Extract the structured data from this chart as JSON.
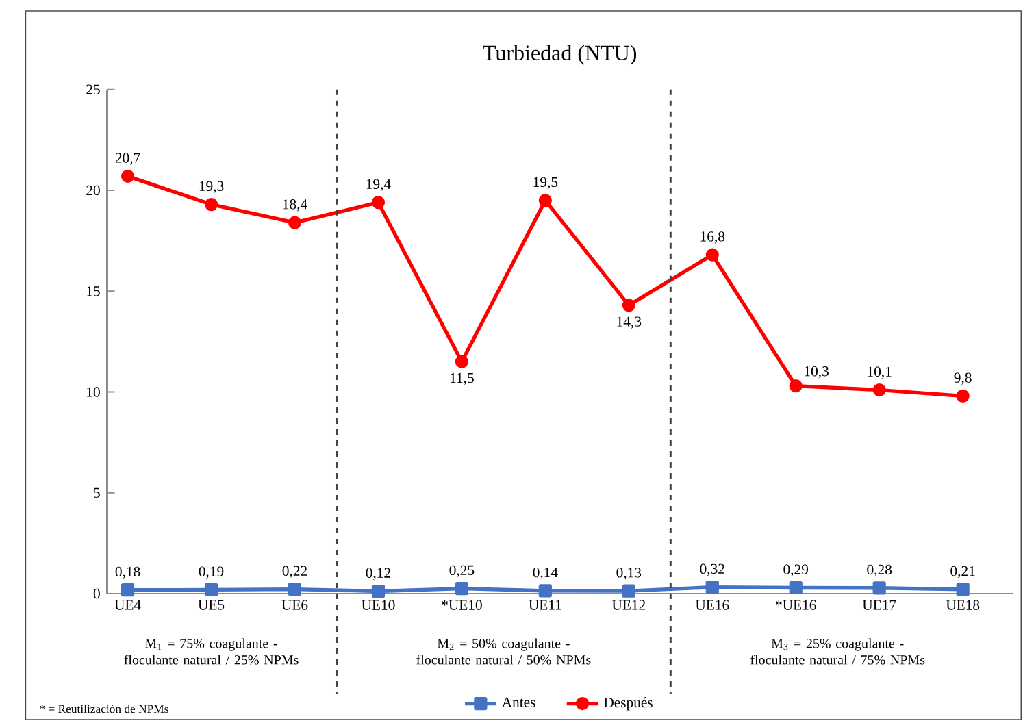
{
  "chart_data": {
    "type": "line",
    "title": "Turbiedad (NTU)",
    "categories": [
      "UE4",
      "UE5",
      "UE6",
      "UE10",
      "*UE10",
      "UE11",
      "UE12",
      "UE16",
      "*UE16",
      "UE17",
      "UE18"
    ],
    "series": [
      {
        "name": "Antes",
        "color": "#4472c4",
        "marker": "square",
        "values": [
          0.18,
          0.19,
          0.22,
          0.12,
          0.25,
          0.14,
          0.13,
          0.32,
          0.29,
          0.28,
          0.21
        ],
        "value_labels": [
          "0,18",
          "0,19",
          "0,22",
          "0,12",
          "0,25",
          "0,14",
          "0,13",
          "0,32",
          "0,29",
          "0,28",
          "0,21"
        ]
      },
      {
        "name": "Después",
        "color": "#ff0000",
        "marker": "circle",
        "values": [
          20.7,
          19.3,
          18.4,
          19.4,
          11.5,
          19.5,
          14.3,
          16.8,
          10.3,
          10.1,
          9.8
        ],
        "value_labels": [
          "20,7",
          "19,3",
          "18,4",
          "19,4",
          "11,5",
          "19,5",
          "14,3",
          "16,8",
          "10,3",
          "10,1",
          "9,8"
        ]
      }
    ],
    "ylim": [
      0,
      25
    ],
    "yticks": [
      0,
      5,
      10,
      15,
      20,
      25
    ],
    "grid": false,
    "legend": "bottom",
    "line_style": "solid",
    "annotations": [
      "M$_{1}$ = 75% coagulante - floculante natural / 25% NPMs",
      "M$_{2}$ = 50% coagulante - floculante natural / 50% NPMs",
      "M$_{3}$ = 25% coagulante - floculante natural / 75% NPMs",
      "* = Reutilización de NPMs"
    ]
  }
}
